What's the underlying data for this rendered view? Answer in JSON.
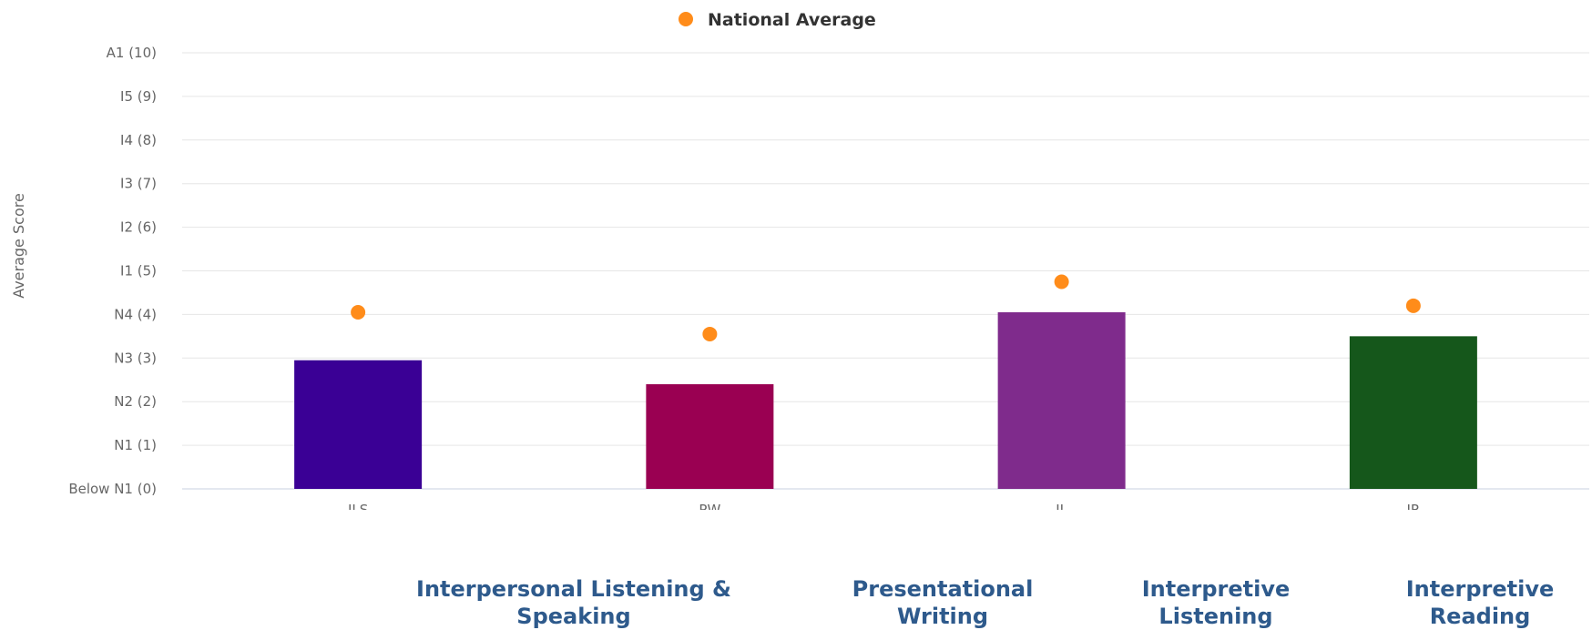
{
  "chart_data": {
    "type": "bar",
    "categories": [
      "ILS",
      "PW",
      "IL",
      "IR"
    ],
    "series": [
      {
        "values": [
          2.95,
          2.4,
          4.05,
          3.5
        ],
        "colors": [
          "#3a0095",
          "#9a0052",
          "#7f2b8c",
          "#15571b"
        ]
      },
      {
        "name": "National Average",
        "type": "scatter",
        "values": [
          4.05,
          3.55,
          4.75,
          4.2
        ],
        "color": "#ff8c1a"
      }
    ],
    "ylabel": "Average Score",
    "ylim": [
      0,
      10
    ],
    "yticks": [
      "Below N1 (0)",
      "N1 (1)",
      "N2 (2)",
      "N3 (3)",
      "N4 (4)",
      "I1 (5)",
      "I2 (6)",
      "I3 (7)",
      "I4 (8)",
      "I5 (9)",
      "A1 (10)"
    ],
    "grid": true,
    "legend": "top-center"
  },
  "descriptions": [
    "Interpersonal Listening & Speaking",
    "Presentational Writing",
    "Interpretive Listening",
    "Interpretive Reading"
  ]
}
